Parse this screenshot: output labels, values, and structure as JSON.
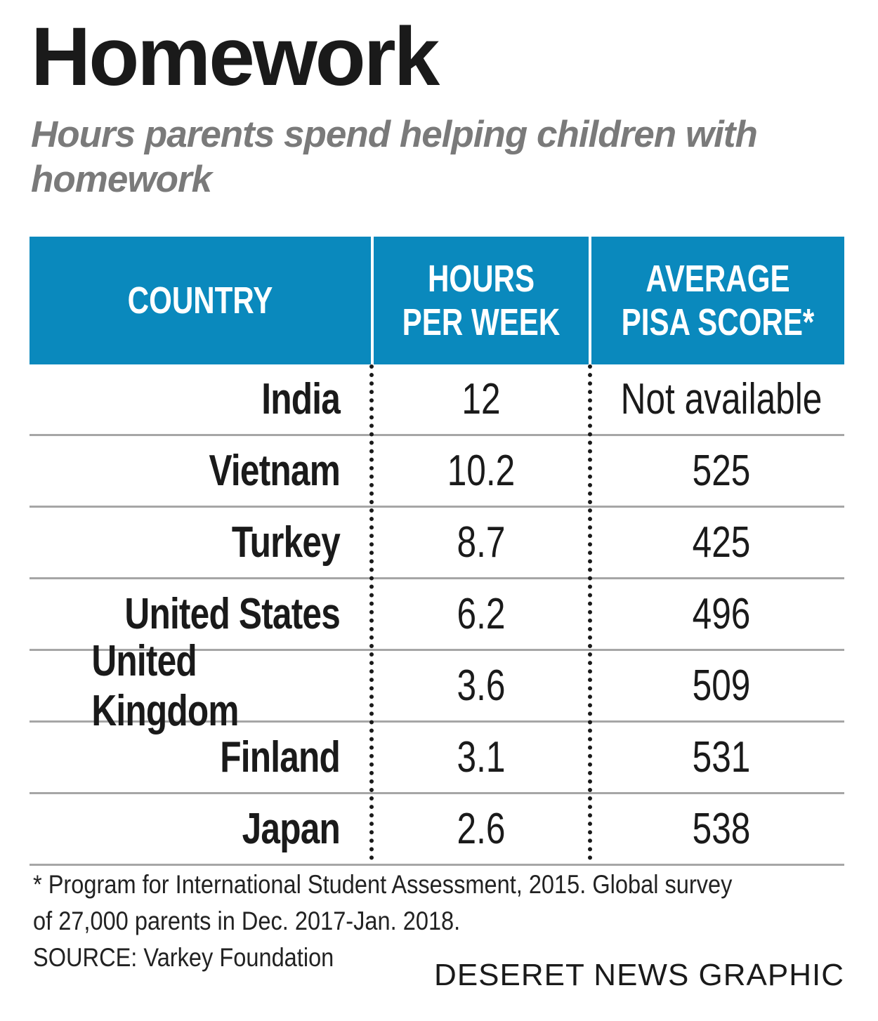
{
  "title": "Homework",
  "subtitle": "Hours parents spend helping children with homework",
  "colors": {
    "header_bg": "#0a89bd",
    "header_text": "#ffffff",
    "subtitle": "#7a7a7a",
    "row_rule": "#a6a6a6"
  },
  "chart_data": {
    "type": "table",
    "columns": [
      "COUNTRY",
      "HOURS\nPER WEEK",
      "AVERAGE\nPISA SCORE*"
    ],
    "rows": [
      {
        "country": "India",
        "hours": "12",
        "pisa": "Not available"
      },
      {
        "country": "Vietnam",
        "hours": "10.2",
        "pisa": "525"
      },
      {
        "country": "Turkey",
        "hours": "8.7",
        "pisa": "425"
      },
      {
        "country": "United States",
        "hours": "6.2",
        "pisa": "496"
      },
      {
        "country": "United Kingdom",
        "hours": "3.6",
        "pisa": "509"
      },
      {
        "country": "Finland",
        "hours": "3.1",
        "pisa": "531"
      },
      {
        "country": "Japan",
        "hours": "2.6",
        "pisa": "538"
      }
    ]
  },
  "footnote": {
    "note": "* Program for International Student Assessment, 2015. Global survey of 27,000 parents in Dec. 2017-Jan. 2018.",
    "source": "SOURCE: Varkey Foundation"
  },
  "credit": "DESERET NEWS GRAPHIC"
}
